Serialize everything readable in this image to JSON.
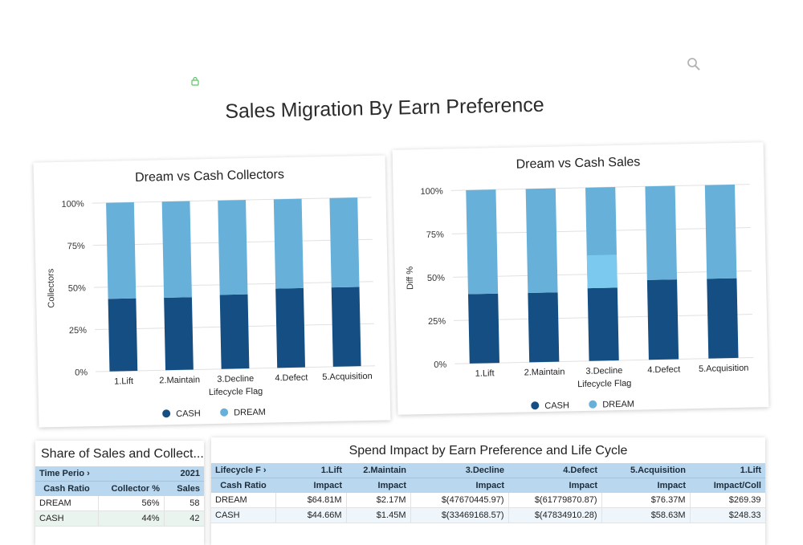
{
  "page": {
    "title": "Sales Migration By Earn Preference"
  },
  "icons": {
    "lock": "lock-icon",
    "search": "search-icon"
  },
  "colors": {
    "cash": "#154e82",
    "dream": "#66b0da",
    "highlight": "#7cc9ef",
    "header_bg": "#b9d7ee"
  },
  "chart_data": [
    {
      "type": "bar",
      "stacked": true,
      "title": "Dream vs Cash Collectors",
      "xlabel": "Lifecycle Flag",
      "ylabel": "Collectors",
      "ylim": [
        0,
        100
      ],
      "yticks": [
        "0%",
        "25%",
        "50%",
        "75%",
        "100%"
      ],
      "categories": [
        "1.Lift",
        "2.Maintain",
        "3.Decline",
        "4.Defect",
        "5.Acquisition"
      ],
      "series": [
        {
          "name": "CASH",
          "values": [
            43,
            43,
            44,
            47,
            47
          ]
        },
        {
          "name": "DREAM",
          "values": [
            57,
            57,
            56,
            53,
            53
          ]
        }
      ],
      "legend": "bottom",
      "grid": true
    },
    {
      "type": "bar",
      "stacked": true,
      "title": "Dream vs Cash Sales",
      "xlabel": "Lifecycle Flag",
      "ylabel": "Diff %",
      "ylim": [
        0,
        100
      ],
      "yticks": [
        "0%",
        "25%",
        "50%",
        "75%",
        "100%"
      ],
      "categories": [
        "1.Lift",
        "2.Maintain",
        "3.Decline",
        "4.Defect",
        "5.Acquisition"
      ],
      "series": [
        {
          "name": "CASH",
          "values": [
            40,
            40,
            42,
            46,
            46
          ]
        },
        {
          "name": "DREAM",
          "values": [
            60,
            60,
            58,
            54,
            54
          ]
        }
      ],
      "highlight": {
        "category": "3.Decline",
        "series": "DREAM",
        "from": 42,
        "to": 61
      },
      "legend": "bottom",
      "grid": true
    }
  ],
  "share_table": {
    "title": "Share of Sales and Collect...",
    "header1": [
      "Time Perio",
      "2021"
    ],
    "header2": [
      "Cash Ratio",
      "Collector %",
      "Sales"
    ],
    "rows": [
      [
        "DREAM",
        "56%",
        "58"
      ],
      [
        "CASH",
        "44%",
        "42"
      ]
    ]
  },
  "impact_table": {
    "title": "Spend Impact by Earn Preference and Life Cycle",
    "header1": [
      "Lifecycle F",
      "1.Lift",
      "2.Maintain",
      "3.Decline",
      "4.Defect",
      "5.Acquisition",
      "1.Lift"
    ],
    "header2": [
      "Cash Ratio",
      "Impact",
      "Impact",
      "Impact",
      "Impact",
      "Impact",
      "Impact/Coll"
    ],
    "rows": [
      [
        "DREAM",
        "$64.81M",
        "$2.17M",
        "$(47670445.97)",
        "$(61779870.87)",
        "$76.37M",
        "$269.39"
      ],
      [
        "CASH",
        "$44.66M",
        "$1.45M",
        "$(33469168.57)",
        "$(47834910.28)",
        "$58.63M",
        "$248.33"
      ]
    ]
  }
}
